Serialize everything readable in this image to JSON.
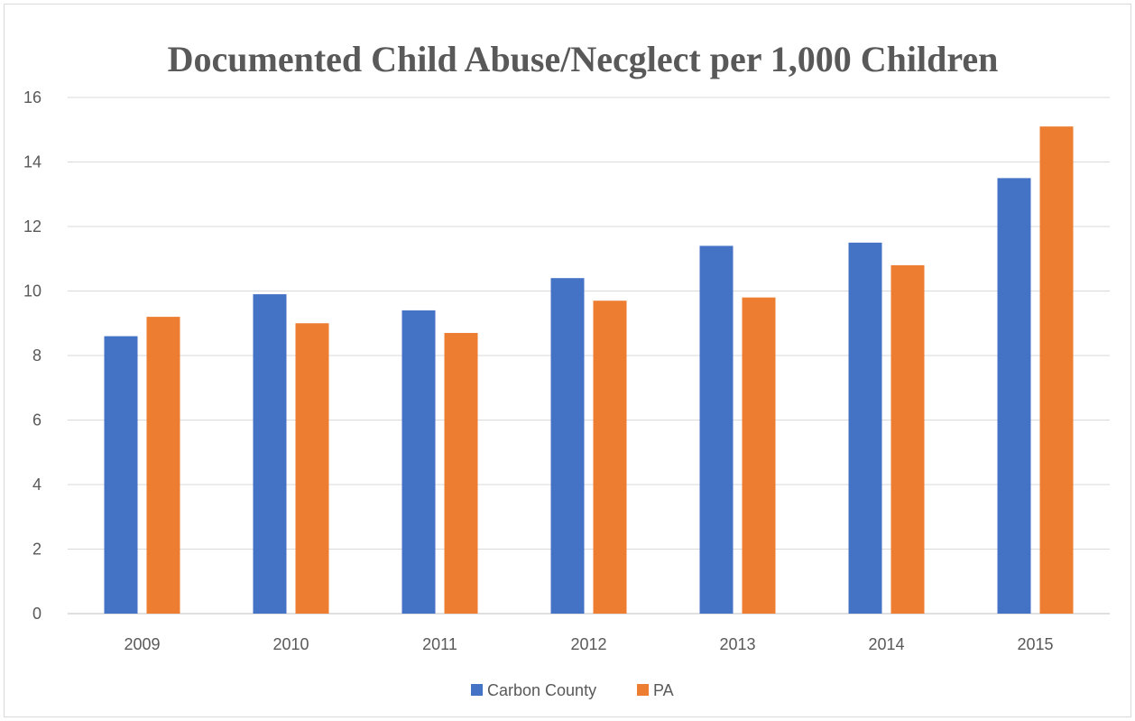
{
  "chart_data": {
    "type": "bar",
    "title": "Documented Child Abuse/Necglect per 1,000 Children",
    "xlabel": "",
    "ylabel": "",
    "categories": [
      "2009",
      "2010",
      "2011",
      "2012",
      "2013",
      "2014",
      "2015"
    ],
    "series": [
      {
        "name": "Carbon County",
        "color": "#4472c4",
        "values": [
          8.6,
          9.9,
          9.4,
          10.4,
          11.4,
          11.5,
          13.5
        ]
      },
      {
        "name": "PA",
        "color": "#ed7d31",
        "values": [
          9.2,
          9.0,
          8.7,
          9.7,
          9.8,
          10.8,
          15.1
        ]
      }
    ],
    "ylim": [
      0,
      16
    ],
    "yticks": [
      "0",
      "2",
      "4",
      "6",
      "8",
      "10",
      "12",
      "14",
      "16"
    ],
    "grid": true,
    "legend": "bottom"
  }
}
